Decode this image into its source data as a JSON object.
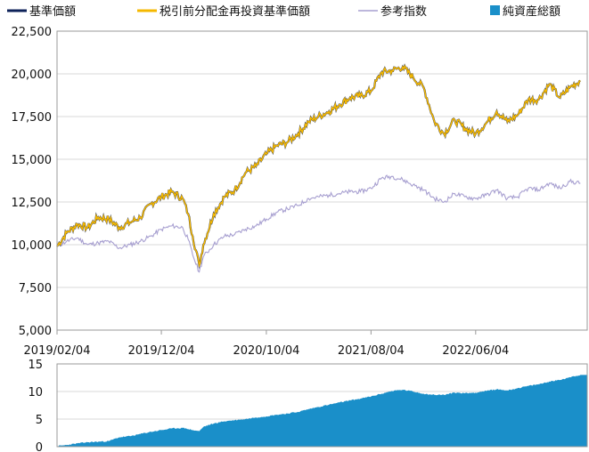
{
  "chart_data": [
    {
      "type": "line",
      "legend": {
        "placement": "top",
        "items": [
          {
            "label": "基準価額",
            "color": "#0d2259",
            "marker": "line"
          },
          {
            "label": "税引前分配金再投資基準価額",
            "color": "#f5b800",
            "marker": "line"
          },
          {
            "label": "参考指数",
            "color": "#a79fd0",
            "marker": "line"
          },
          {
            "label": "純資産総額",
            "color": "#1a8fc9",
            "marker": "square"
          }
        ]
      },
      "x_tick_labels": [
        "2019/02/04",
        "2019/12/04",
        "2020/10/04",
        "2021/08/04",
        "2022/06/04"
      ],
      "ylim": [
        5000,
        22500
      ],
      "y_tick_labels": [
        "5,000",
        "7,500",
        "10,000",
        "12,500",
        "15,000",
        "17,500",
        "20,000",
        "22,500"
      ],
      "y_ticks": [
        5000,
        7500,
        10000,
        12500,
        15000,
        17500,
        20000,
        22500
      ],
      "grid": "horizontal",
      "series": [
        {
          "name": "税引前分配金再投資基準価額",
          "color": "#f5b800",
          "x": [
            "2019/02/04",
            "2019/03/04",
            "2019/04/04",
            "2019/05/04",
            "2019/06/04",
            "2019/07/04",
            "2019/08/04",
            "2019/09/04",
            "2019/10/04",
            "2019/11/04",
            "2019/12/04",
            "2020/01/04",
            "2020/02/04",
            "2020/02/20",
            "2020/03/04",
            "2020/03/23",
            "2020/04/04",
            "2020/05/04",
            "2020/06/04",
            "2020/07/04",
            "2020/08/04",
            "2020/09/04",
            "2020/10/04",
            "2020/11/04",
            "2020/12/04",
            "2021/01/04",
            "2021/02/04",
            "2021/03/04",
            "2021/04/04",
            "2021/05/04",
            "2021/06/04",
            "2021/07/04",
            "2021/08/04",
            "2021/09/04",
            "2021/10/04",
            "2021/11/04",
            "2021/12/04",
            "2022/01/04",
            "2022/02/04",
            "2022/03/04",
            "2022/04/04",
            "2022/05/04",
            "2022/06/04",
            "2022/07/04",
            "2022/08/04",
            "2022/09/04",
            "2022/10/04",
            "2022/11/04",
            "2022/12/04",
            "2023/01/04",
            "2023/02/04",
            "2023/03/04",
            "2023/04/04"
          ],
          "values": [
            9900,
            10700,
            11200,
            11000,
            11600,
            11500,
            11000,
            11300,
            11600,
            12400,
            12800,
            13100,
            12700,
            11800,
            10500,
            8800,
            10000,
            11800,
            12800,
            13200,
            14200,
            14600,
            15300,
            15800,
            16000,
            16500,
            17200,
            17500,
            17800,
            18200,
            18600,
            18700,
            19000,
            20100,
            20200,
            20400,
            19800,
            19200,
            17200,
            16500,
            17300,
            16800,
            16500,
            17100,
            17800,
            17200,
            17600,
            18500,
            18500,
            19400,
            18600,
            19200,
            19600
          ]
        },
        {
          "name": "参考指数",
          "color": "#a79fd0",
          "x": [
            "2019/02/04",
            "2019/03/04",
            "2019/04/04",
            "2019/05/04",
            "2019/06/04",
            "2019/07/04",
            "2019/08/04",
            "2019/09/04",
            "2019/10/04",
            "2019/11/04",
            "2019/12/04",
            "2020/01/04",
            "2020/02/04",
            "2020/02/20",
            "2020/03/04",
            "2020/03/23",
            "2020/04/04",
            "2020/05/04",
            "2020/06/04",
            "2020/07/04",
            "2020/08/04",
            "2020/09/04",
            "2020/10/04",
            "2020/11/04",
            "2020/12/04",
            "2021/01/04",
            "2021/02/04",
            "2021/03/04",
            "2021/04/04",
            "2021/05/04",
            "2021/06/04",
            "2021/07/04",
            "2021/08/04",
            "2021/09/04",
            "2021/10/04",
            "2021/11/04",
            "2021/12/04",
            "2022/01/04",
            "2022/02/04",
            "2022/03/04",
            "2022/04/04",
            "2022/05/04",
            "2022/06/04",
            "2022/07/04",
            "2022/08/04",
            "2022/09/04",
            "2022/10/04",
            "2022/11/04",
            "2022/12/04",
            "2023/01/04",
            "2023/02/04",
            "2023/03/04",
            "2023/04/04"
          ],
          "values": [
            9900,
            10200,
            10400,
            10000,
            10100,
            10200,
            9800,
            10000,
            10200,
            10500,
            10900,
            11100,
            11000,
            10300,
            9400,
            8400,
            9300,
            10000,
            10500,
            10600,
            10900,
            11100,
            11500,
            11900,
            12100,
            12300,
            12700,
            12800,
            12900,
            13000,
            13100,
            13100,
            13300,
            13900,
            14000,
            13800,
            13500,
            13200,
            12700,
            12500,
            13000,
            12800,
            12700,
            12900,
            13200,
            12700,
            12800,
            13300,
            13200,
            13600,
            13300,
            13700,
            13600
          ]
        }
      ]
    },
    {
      "type": "area",
      "name": "純資産総額",
      "color": "#1a8fc9",
      "x_tick_labels": [],
      "ylim": [
        0,
        15
      ],
      "y_tick_labels": [
        "0",
        "5",
        "10",
        "15"
      ],
      "y_ticks": [
        0,
        5,
        10,
        15
      ],
      "grid": "horizontal",
      "x": [
        "2019/02/04",
        "2019/03/04",
        "2019/04/04",
        "2019/05/04",
        "2019/06/04",
        "2019/07/04",
        "2019/08/04",
        "2019/09/04",
        "2019/10/04",
        "2019/11/04",
        "2019/12/04",
        "2020/01/04",
        "2020/02/04",
        "2020/02/20",
        "2020/03/04",
        "2020/03/23",
        "2020/04/04",
        "2020/05/04",
        "2020/06/04",
        "2020/07/04",
        "2020/08/04",
        "2020/09/04",
        "2020/10/04",
        "2020/11/04",
        "2020/12/04",
        "2021/01/04",
        "2021/02/04",
        "2021/03/04",
        "2021/04/04",
        "2021/05/04",
        "2021/06/04",
        "2021/07/04",
        "2021/08/04",
        "2021/09/04",
        "2021/10/04",
        "2021/11/04",
        "2021/12/04",
        "2022/01/04",
        "2022/02/04",
        "2022/03/04",
        "2022/04/04",
        "2022/05/04",
        "2022/06/04",
        "2022/07/04",
        "2022/08/04",
        "2022/09/04",
        "2022/10/04",
        "2022/11/04",
        "2022/12/04",
        "2023/01/04",
        "2023/02/04",
        "2023/03/04",
        "2023/04/04"
      ],
      "values": [
        0.1,
        0.3,
        0.6,
        0.8,
        0.9,
        1.0,
        1.7,
        1.9,
        2.3,
        2.7,
        3.0,
        3.3,
        3.4,
        3.2,
        3.0,
        2.8,
        3.6,
        4.2,
        4.6,
        4.8,
        5.0,
        5.3,
        5.5,
        5.8,
        6.0,
        6.3,
        6.8,
        7.2,
        7.6,
        8.0,
        8.4,
        8.7,
        9.1,
        9.6,
        10.1,
        10.3,
        10.0,
        9.6,
        9.4,
        9.4,
        9.8,
        9.7,
        9.8,
        10.1,
        10.4,
        10.2,
        10.6,
        11.0,
        11.3,
        11.8,
        12.1,
        12.6,
        13.0
      ]
    }
  ]
}
